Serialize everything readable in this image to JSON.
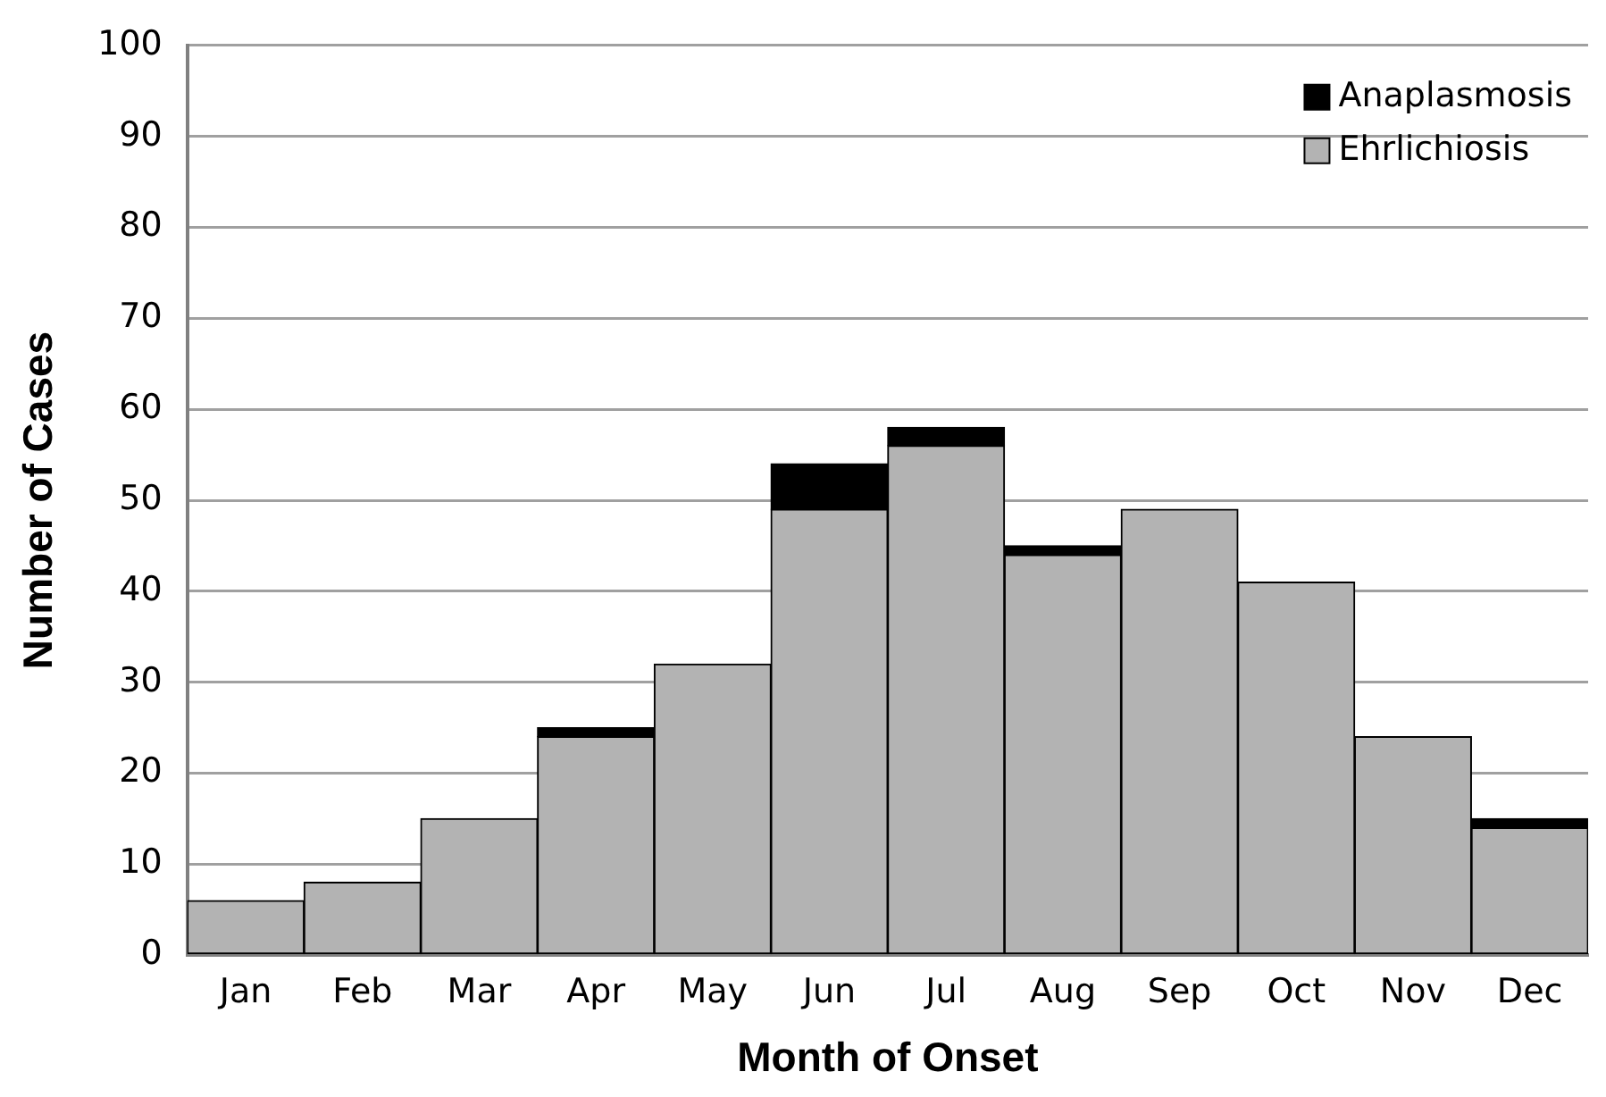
{
  "chart_data": {
    "type": "bar",
    "stacked": true,
    "xlabel": "Month of Onset",
    "ylabel": "Number of Cases",
    "categories": [
      "Jan",
      "Feb",
      "Mar",
      "Apr",
      "May",
      "Jun",
      "Jul",
      "Aug",
      "Sep",
      "Oct",
      "Nov",
      "Dec"
    ],
    "series": [
      {
        "name": "Ehrlichiosis",
        "color": "#b3b3b3",
        "values": [
          6,
          8,
          15,
          24,
          32,
          49,
          56,
          44,
          49,
          41,
          24,
          14
        ]
      },
      {
        "name": "Anaplasmosis",
        "color": "#000000",
        "values": [
          0,
          0,
          0,
          1,
          0,
          5,
          2,
          1,
          0,
          0,
          0,
          1
        ]
      }
    ],
    "ylim": [
      0,
      100
    ],
    "yticks": [
      0,
      10,
      20,
      30,
      40,
      50,
      60,
      70,
      80,
      90,
      100
    ],
    "grid": "y",
    "legend": "top right"
  }
}
